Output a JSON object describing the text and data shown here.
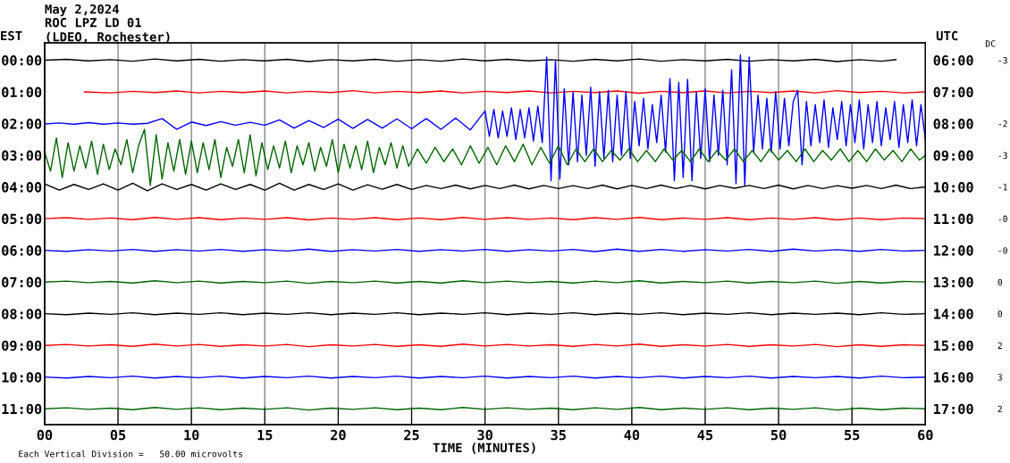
{
  "chart_data": {
    "type": "line",
    "title": "May 2,2024",
    "subtitle": "ROC LPZ LD 01\n(LDEO, Rochester)",
    "xlabel": "TIME (MINUTES)",
    "ylabel": "EST",
    "y2label": "UTC",
    "y3label": "DC",
    "annotations": [
      "Each Vertical Division =   50.00 microvolts"
    ],
    "xlim": [
      0,
      60
    ],
    "xticks": [
      {
        "value": 0,
        "label": "00"
      },
      {
        "value": 5,
        "label": "05"
      },
      10,
      15,
      20,
      25,
      30,
      35,
      40,
      45,
      50,
      55,
      60
    ],
    "ylim": [
      11.5,
      -0.55
    ],
    "yticks": [
      {
        "value": 0,
        "label": "00:00"
      },
      {
        "value": 1,
        "label": "01:00"
      },
      {
        "value": 2,
        "label": "02:00"
      },
      {
        "value": 3,
        "label": "03:00"
      },
      {
        "value": 4,
        "label": "04:00"
      },
      {
        "value": 5,
        "label": "05:00"
      },
      {
        "value": 6,
        "label": "06:00"
      },
      {
        "value": 7,
        "label": "07:00"
      },
      {
        "value": 8,
        "label": "08:00"
      },
      {
        "value": 9,
        "label": "09:00"
      },
      {
        "value": 10,
        "label": "10:00"
      },
      {
        "value": 11,
        "label": "11:00"
      }
    ],
    "y2lim": [
      17.5,
      5.45
    ],
    "y2ticks": [
      {
        "value": 6,
        "label": "06:00"
      },
      {
        "value": 7,
        "label": "07:00"
      },
      {
        "value": 8,
        "label": "08:00"
      },
      {
        "value": 9,
        "label": "09:00"
      },
      {
        "value": 10,
        "label": "10:00"
      },
      {
        "value": 11,
        "label": "11:00"
      },
      {
        "value": 12,
        "label": "12:00"
      },
      {
        "value": 13,
        "label": "13:00"
      },
      {
        "value": 14,
        "label": "14:00"
      },
      {
        "value": 15,
        "label": "15:00"
      },
      {
        "value": 16,
        "label": "16:00"
      },
      {
        "value": 17,
        "label": "17:00"
      }
    ],
    "y2_categories": [
      "-3",
      null,
      "-2",
      "-3",
      "-1",
      "-0",
      "-0",
      "0",
      "0",
      "2",
      "3",
      "2"
    ],
    "grid": "x",
    "marker": "none",
    "line_style": "solid",
    "series": [
      {
        "color": "#000000",
        "x": [
          0,
          1.5,
          3,
          4.5,
          6,
          7.5,
          9,
          10.5,
          12,
          13.5,
          15,
          16.5,
          18,
          19.5,
          21,
          22.5,
          24,
          25.5,
          27,
          28.5,
          30,
          31.5,
          33,
          34.5,
          36,
          37.5,
          39,
          40.5,
          42,
          43.5,
          45,
          46.5,
          48,
          49.5,
          51,
          52.5,
          54,
          55.5,
          57,
          58
        ],
        "values": [
          0,
          -0.03,
          0.02,
          -0.02,
          0.03,
          -0.04,
          0.02,
          -0.03,
          0.03,
          -0.02,
          0.02,
          -0.03,
          0.04,
          -0.02,
          0.02,
          -0.03,
          0.03,
          -0.02,
          0.03,
          -0.04,
          0.02,
          -0.03,
          0.02,
          -0.02,
          0.03,
          -0.03,
          0.02,
          -0.04,
          0.03,
          -0.02,
          0.02,
          -0.03,
          0.03,
          -0.02,
          0.02,
          -0.03,
          0.04,
          -0.02,
          0.03,
          -0.02
        ]
      },
      {
        "color": "#ff0000",
        "x": [
          2.7,
          4.5,
          6,
          7.5,
          9,
          10.5,
          12,
          13.5,
          15,
          16.5,
          18,
          19.5,
          21,
          22.5,
          24,
          25.5,
          27,
          28.5,
          30,
          31.5,
          33,
          34.5,
          36,
          37.5,
          39,
          40.5,
          42,
          43.5,
          45,
          46.5,
          48,
          49.5,
          51,
          52.5,
          54,
          55.5,
          57,
          58.5,
          60
        ],
        "values": [
          1,
          1.03,
          0.98,
          1.02,
          0.97,
          1.03,
          0.98,
          1.02,
          0.97,
          1.03,
          0.98,
          1.02,
          0.96,
          1.03,
          0.98,
          1.02,
          0.97,
          1.03,
          0.98,
          1.02,
          0.97,
          1.03,
          0.98,
          1.02,
          0.97,
          1.04,
          0.98,
          1.02,
          0.97,
          1.03,
          0.98,
          1.02,
          0.97,
          1.03,
          0.96,
          1.02,
          0.98,
          1.03,
          1
        ]
      },
      {
        "color": "#0000ff",
        "x": [
          0,
          1,
          2,
          3,
          4,
          5,
          6,
          7,
          8,
          9,
          10,
          11,
          12,
          13,
          14,
          15,
          16,
          17,
          18,
          19,
          20,
          21,
          22,
          23,
          24,
          25,
          26,
          27,
          28,
          29,
          30,
          30.3,
          30.6,
          30.9,
          31.2,
          31.5,
          31.8,
          32.1,
          32.4,
          32.7,
          33,
          33.3,
          33.6,
          33.9,
          34.2,
          34.5,
          34.8,
          35.1,
          35.4,
          35.7,
          36,
          36.3,
          36.6,
          36.9,
          37.2,
          37.5,
          37.8,
          38.1,
          38.4,
          38.7,
          39,
          39.3,
          39.6,
          39.9,
          40.2,
          40.5,
          40.8,
          41.1,
          41.4,
          41.7,
          42,
          42.3,
          42.6,
          42.9,
          43.2,
          43.5,
          43.8,
          44.1,
          44.4,
          44.7,
          45,
          45.3,
          45.6,
          45.9,
          46.2,
          46.5,
          46.8,
          47.1,
          47.4,
          47.7,
          48,
          48.3,
          48.6,
          48.9,
          49.2,
          49.5,
          49.8,
          50.1,
          50.4,
          50.7,
          51,
          51.3,
          51.6,
          51.9,
          52.2,
          52.5,
          52.8,
          53.1,
          53.4,
          53.7,
          54,
          54.3,
          54.6,
          54.9,
          55.2,
          55.5,
          55.8,
          56.1,
          56.4,
          56.7,
          57,
          57.3,
          57.6,
          57.9,
          58.2,
          58.5,
          58.8,
          59.1,
          59.4,
          59.7,
          60
        ],
        "values": [
          2.01,
          1.98,
          2.02,
          1.97,
          2.02,
          1.98,
          2.02,
          1.99,
          1.84,
          2.18,
          1.95,
          2.06,
          1.94,
          2.05,
          1.96,
          2.05,
          1.88,
          2.14,
          1.9,
          2.12,
          1.86,
          2.15,
          1.87,
          2.14,
          1.85,
          2.16,
          1.84,
          2.18,
          1.82,
          2.2,
          1.6,
          2.4,
          1.55,
          2.45,
          1.6,
          2.4,
          1.5,
          2.5,
          1.55,
          2.45,
          1.5,
          2.55,
          1.45,
          2.6,
          -0.1,
          3.8,
          0.0,
          3.75,
          0.9,
          3.3,
          1.0,
          3.2,
          1.1,
          3.0,
          0.85,
          3.35,
          1.0,
          3.1,
          0.95,
          3.2,
          1.1,
          3.0,
          1.0,
          3.1,
          1.3,
          2.7,
          1.2,
          2.8,
          1.4,
          2.6,
          1.1,
          2.9,
          0.58,
          3.8,
          0.7,
          3.7,
          0.6,
          3.8,
          1.0,
          3.1,
          0.9,
          3.2,
          1.1,
          3.0,
          0.95,
          3.3,
          0.3,
          3.9,
          -0.17,
          3.95,
          -0.1,
          2.9,
          1.1,
          2.8,
          1.2,
          2.9,
          1.0,
          2.8,
          1.2,
          2.7,
          1.3,
          0.95,
          3.3,
          1.3,
          2.7,
          1.4,
          2.6,
          1.25,
          2.75,
          1.5,
          2.5,
          1.3,
          2.7,
          1.4,
          2.6,
          1.25,
          2.8,
          1.4,
          2.6,
          1.3,
          2.7,
          1.5,
          2.5,
          1.3,
          2.75,
          1.4,
          2.6,
          1.25,
          2.7,
          1.4,
          2.5
        ]
      },
      {
        "color": "#006400",
        "x": [
          0,
          0.4,
          0.8,
          1.2,
          1.6,
          2,
          2.4,
          2.8,
          3.2,
          3.6,
          4,
          4.4,
          4.8,
          5.2,
          5.6,
          6,
          6.4,
          6.8,
          7.2,
          7.6,
          8,
          8.4,
          8.8,
          9.2,
          9.6,
          10,
          10.4,
          10.8,
          11.2,
          11.6,
          12,
          12.4,
          12.8,
          13.2,
          13.6,
          14,
          14.4,
          14.8,
          15.2,
          15.6,
          16,
          16.4,
          16.8,
          17.2,
          17.6,
          18,
          18.4,
          18.8,
          19.2,
          19.6,
          20,
          20.4,
          20.8,
          21.2,
          21.6,
          22,
          22.4,
          22.8,
          23.2,
          23.6,
          24,
          24.4,
          24.8,
          25.4,
          26,
          26.6,
          27.2,
          27.8,
          28.4,
          29,
          29.6,
          30.2,
          30.8,
          31.4,
          32,
          32.6,
          33.2,
          33.8,
          34.4,
          35,
          35.6,
          36.2,
          36.8,
          37.4,
          38,
          38.6,
          39.2,
          39.8,
          40.4,
          41,
          41.6,
          42.2,
          42.8,
          43.4,
          44,
          44.6,
          45.2,
          45.8,
          46.4,
          47,
          47.6,
          48.2,
          48.8,
          49.4,
          50,
          50.6,
          51.2,
          51.8,
          52.4,
          53,
          53.6,
          54.2,
          54.8,
          55.4,
          56,
          56.6,
          57.2,
          57.8,
          58.4,
          59,
          59.6,
          60
        ],
        "values": [
          2.9,
          3.5,
          2.45,
          3.7,
          2.6,
          3.5,
          2.7,
          3.4,
          2.55,
          3.6,
          2.65,
          3.45,
          2.8,
          3.3,
          2.5,
          3.55,
          2.7,
          2.18,
          3.95,
          2.35,
          3.75,
          2.6,
          3.5,
          2.5,
          3.6,
          2.55,
          3.55,
          2.6,
          3.45,
          2.5,
          3.7,
          2.75,
          3.35,
          2.5,
          3.55,
          2.35,
          3.65,
          2.6,
          3.45,
          2.7,
          3.4,
          2.55,
          3.55,
          2.7,
          3.3,
          2.6,
          3.5,
          2.75,
          3.35,
          2.5,
          3.55,
          2.65,
          3.4,
          2.7,
          3.45,
          2.55,
          3.55,
          2.75,
          3.3,
          2.6,
          3.4,
          2.7,
          3.35,
          2.8,
          3.25,
          2.75,
          3.2,
          2.8,
          3.3,
          2.7,
          3.25,
          2.75,
          3.3,
          2.7,
          3.2,
          2.65,
          3.3,
          2.75,
          3.25,
          2.7,
          3.3,
          2.8,
          3.2,
          2.8,
          3.2,
          2.85,
          3.15,
          2.8,
          3.2,
          2.85,
          3.2,
          2.8,
          3.15,
          2.85,
          3.2,
          2.8,
          3.2,
          2.85,
          3.15,
          2.8,
          3.2,
          2.85,
          3.2,
          2.8,
          3.15,
          2.85,
          3.2,
          2.8,
          3.2,
          2.85,
          3.15,
          2.8,
          3.2,
          2.85,
          3.2,
          2.8,
          3.15,
          2.85,
          3.2,
          2.8,
          3.15,
          3.0
        ]
      },
      {
        "color": "#000000",
        "x": [
          0,
          1,
          2,
          3,
          4,
          5,
          6,
          7,
          8,
          9,
          10,
          11,
          12,
          13,
          14,
          15,
          16,
          17,
          18,
          19,
          20,
          21,
          22,
          23,
          24,
          25,
          26,
          27,
          28,
          29,
          30,
          31,
          32,
          33,
          34,
          35,
          36,
          37,
          38,
          39,
          40,
          41,
          42,
          43,
          44,
          45,
          46,
          47,
          48,
          49,
          50,
          51,
          52,
          53,
          54,
          55,
          56,
          57,
          58,
          59,
          60
        ],
        "values": [
          3.9,
          4.1,
          3.92,
          4.08,
          3.9,
          4.1,
          3.88,
          4.12,
          3.9,
          4.08,
          3.92,
          4.1,
          3.9,
          4.08,
          3.92,
          4.1,
          3.88,
          4.1,
          3.92,
          4.08,
          3.9,
          4.1,
          3.93,
          4.07,
          3.92,
          4.08,
          3.95,
          4.05,
          3.94,
          4.06,
          3.95,
          4.05,
          3.94,
          4.06,
          3.95,
          4.05,
          3.96,
          4.05,
          3.94,
          4.06,
          3.95,
          4.05,
          3.94,
          4.05,
          3.95,
          4.06,
          3.95,
          4.04,
          3.95,
          4.05,
          3.94,
          4.06,
          3.95,
          4.05,
          3.96,
          4.04,
          3.95,
          4.05,
          3.94,
          4.05,
          4.0
        ]
      },
      {
        "color": "#ff0000",
        "x": [
          0,
          1.5,
          3,
          4.5,
          6,
          7.5,
          9,
          10.5,
          12,
          13.5,
          15,
          16.5,
          18,
          19.5,
          21,
          22.5,
          24,
          25.5,
          27,
          28.5,
          30,
          31.5,
          33,
          34.5,
          36,
          37.5,
          39,
          40.5,
          42,
          43.5,
          45,
          46.5,
          48,
          49.5,
          51,
          52.5,
          54,
          55.5,
          57,
          58.5,
          60
        ],
        "values": [
          5,
          4.97,
          5.02,
          4.98,
          5.03,
          4.96,
          5.02,
          4.97,
          5.03,
          4.98,
          5.02,
          4.97,
          5.04,
          4.98,
          5.02,
          4.97,
          5.03,
          4.98,
          5.03,
          4.96,
          5.02,
          4.97,
          5.02,
          4.98,
          5.03,
          4.97,
          5.02,
          4.96,
          5.03,
          4.98,
          5.02,
          4.97,
          5.03,
          4.98,
          5.02,
          4.97,
          5.04,
          4.98,
          5.03,
          4.98,
          5
        ]
      },
      {
        "color": "#0000ff",
        "x": [
          0,
          1.5,
          3,
          4.5,
          6,
          7.5,
          9,
          10.5,
          12,
          13.5,
          15,
          16.5,
          18,
          19.5,
          21,
          22.5,
          24,
          25.5,
          27,
          28.5,
          30,
          31.5,
          33,
          34.5,
          36,
          37.5,
          39,
          40.5,
          42,
          43.5,
          45,
          46.5,
          48,
          49.5,
          51,
          52.5,
          54,
          55.5,
          57,
          58.5,
          60
        ],
        "values": [
          6,
          6.03,
          5.98,
          6.02,
          5.97,
          6.03,
          5.98,
          6.02,
          5.97,
          6.03,
          5.98,
          6.02,
          5.96,
          6.03,
          5.98,
          6.02,
          5.97,
          6.03,
          5.98,
          6.02,
          5.97,
          6.03,
          5.98,
          6.02,
          5.97,
          6.04,
          5.96,
          6.03,
          5.97,
          6.03,
          5.98,
          6.02,
          5.97,
          6.03,
          5.96,
          6.02,
          5.98,
          6.03,
          5.97,
          6.02,
          6
        ]
      },
      {
        "color": "#006400",
        "x": [
          0,
          1.5,
          3,
          4.5,
          6,
          7.5,
          9,
          10.5,
          12,
          13.5,
          15,
          16.5,
          18,
          19.5,
          21,
          22.5,
          24,
          25.5,
          27,
          28.5,
          30,
          31.5,
          33,
          34.5,
          36,
          37.5,
          39,
          40.5,
          42,
          43.5,
          45,
          46.5,
          48,
          49.5,
          51,
          52.5,
          54,
          55.5,
          57,
          58.5,
          60
        ],
        "values": [
          7,
          6.97,
          7.02,
          6.98,
          7.03,
          6.96,
          7.02,
          6.97,
          7.03,
          6.98,
          7.02,
          6.97,
          7.04,
          6.98,
          7.02,
          6.97,
          7.03,
          6.98,
          7.03,
          6.96,
          7.02,
          6.97,
          7.02,
          6.98,
          7.03,
          6.97,
          7.02,
          6.96,
          7.03,
          6.98,
          7.02,
          6.97,
          7.03,
          6.98,
          7.02,
          6.97,
          7.04,
          6.98,
          7.03,
          6.98,
          7
        ]
      },
      {
        "color": "#000000",
        "x": [
          0,
          1.5,
          3,
          4.5,
          6,
          7.5,
          9,
          10.5,
          12,
          13.5,
          15,
          16.5,
          18,
          19.5,
          21,
          22.5,
          24,
          25.5,
          27,
          28.5,
          30,
          31.5,
          33,
          34.5,
          36,
          37.5,
          39,
          40.5,
          42,
          43.5,
          45,
          46.5,
          48,
          49.5,
          51,
          52.5,
          54,
          55.5,
          57,
          58.5,
          60
        ],
        "values": [
          8,
          8.03,
          7.98,
          8.02,
          7.97,
          8.03,
          7.98,
          8.02,
          7.97,
          8.03,
          7.98,
          8.02,
          7.97,
          8.03,
          7.98,
          8.02,
          7.97,
          8.03,
          7.98,
          8.02,
          7.97,
          8.03,
          7.98,
          8.02,
          7.97,
          8.03,
          7.98,
          8.02,
          7.97,
          8.03,
          7.98,
          8.02,
          7.97,
          8.03,
          7.98,
          8.02,
          7.98,
          8.03,
          7.97,
          8.02,
          8
        ]
      },
      {
        "color": "#ff0000",
        "x": [
          0,
          1.5,
          3,
          4.5,
          6,
          7.5,
          9,
          10.5,
          12,
          13.5,
          15,
          16.5,
          18,
          19.5,
          21,
          22.5,
          24,
          25.5,
          27,
          28.5,
          30,
          31.5,
          33,
          34.5,
          36,
          37.5,
          39,
          40.5,
          42,
          43.5,
          45,
          46.5,
          48,
          49.5,
          51,
          52.5,
          54,
          55.5,
          57,
          58.5,
          60
        ],
        "values": [
          9,
          8.97,
          9.02,
          8.98,
          9.03,
          8.96,
          9.02,
          8.97,
          9.03,
          8.98,
          9.02,
          8.97,
          9.04,
          8.98,
          9.02,
          8.97,
          9.03,
          8.98,
          9.03,
          8.96,
          9.02,
          8.97,
          9.02,
          8.98,
          9.03,
          8.97,
          9.02,
          8.96,
          9.03,
          8.98,
          9.02,
          8.97,
          9.03,
          8.98,
          9.02,
          8.97,
          9.04,
          8.98,
          9.03,
          8.98,
          9
        ]
      },
      {
        "color": "#0000ff",
        "x": [
          0,
          1.5,
          3,
          4.5,
          6,
          7.5,
          9,
          10.5,
          12,
          13.5,
          15,
          16.5,
          18,
          19.5,
          21,
          22.5,
          24,
          25.5,
          27,
          28.5,
          30,
          31.5,
          33,
          34.5,
          36,
          37.5,
          39,
          40.5,
          42,
          43.5,
          45,
          46.5,
          48,
          49.5,
          51,
          52.5,
          54,
          55.5,
          57,
          58.5,
          60
        ],
        "values": [
          10,
          10.03,
          9.98,
          10.02,
          9.97,
          10.03,
          9.98,
          10.02,
          9.97,
          10.03,
          9.98,
          10.02,
          9.97,
          10.03,
          9.98,
          10.02,
          9.97,
          10.03,
          9.98,
          10.02,
          9.97,
          10.03,
          9.98,
          10.02,
          9.97,
          10.03,
          9.98,
          10.02,
          9.97,
          10.03,
          9.98,
          10.02,
          9.97,
          10.03,
          9.98,
          10.02,
          9.98,
          10.03,
          9.97,
          10.02,
          10
        ]
      },
      {
        "color": "#006400",
        "x": [
          0,
          1.5,
          3,
          4.5,
          6,
          7.5,
          9,
          10.5,
          12,
          13.5,
          15,
          16.5,
          18,
          19.5,
          21,
          22.5,
          24,
          25.5,
          27,
          28.5,
          30,
          31.5,
          33,
          34.5,
          36,
          37.5,
          39,
          40.5,
          42,
          43.5,
          45,
          46.5,
          48,
          49.5,
          51,
          52.5,
          54,
          55.5,
          57,
          58.5,
          60
        ],
        "values": [
          11,
          10.97,
          11.02,
          10.98,
          11.03,
          10.96,
          11.02,
          10.97,
          11.03,
          10.98,
          11.02,
          10.97,
          11.04,
          10.98,
          11.02,
          10.97,
          11.03,
          10.98,
          11.03,
          10.96,
          11.02,
          10.97,
          11.02,
          10.98,
          11.03,
          10.97,
          11.02,
          10.96,
          11.03,
          10.98,
          11.02,
          10.97,
          11.03,
          10.98,
          11.02,
          10.97,
          11.04,
          10.98,
          11.03,
          10.98,
          11
        ]
      }
    ]
  }
}
